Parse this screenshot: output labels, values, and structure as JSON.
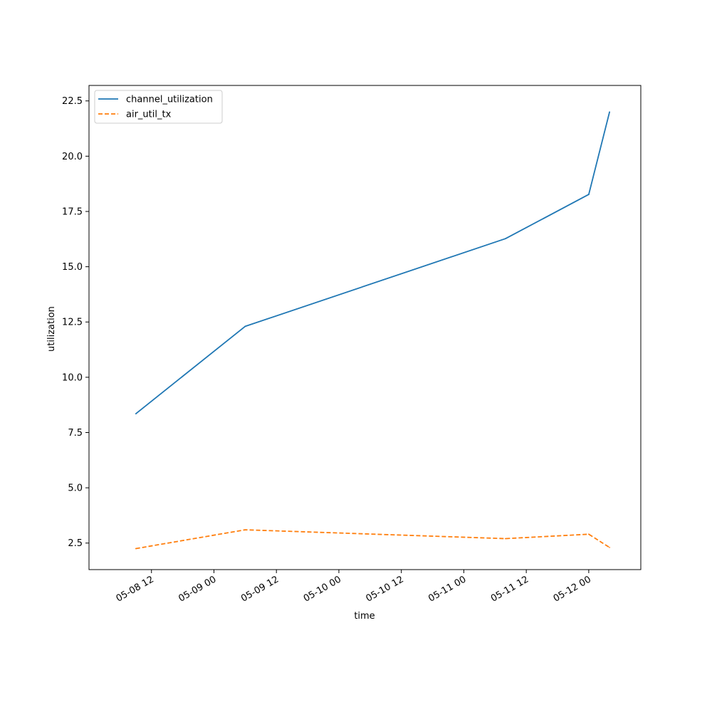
{
  "chart_data": {
    "type": "line",
    "xlabel": "time",
    "ylabel": "utilization",
    "x_axis": "datetime",
    "xlim": [
      "2024-05-08 00:00",
      "2024-05-12 10:00"
    ],
    "ylim": [
      1.3,
      23.2
    ],
    "x_ticks": [
      {
        "value": "2024-05-08 12:00",
        "label": "05-08 12"
      },
      {
        "value": "2024-05-09 00:00",
        "label": "05-09 00"
      },
      {
        "value": "2024-05-09 12:00",
        "label": "05-09 12"
      },
      {
        "value": "2024-05-10 00:00",
        "label": "05-10 00"
      },
      {
        "value": "2024-05-10 12:00",
        "label": "05-10 12"
      },
      {
        "value": "2024-05-11 00:00",
        "label": "05-11 00"
      },
      {
        "value": "2024-05-11 12:00",
        "label": "05-11 12"
      },
      {
        "value": "2024-05-12 00:00",
        "label": "05-12 00"
      }
    ],
    "y_ticks": [
      {
        "value": 2.5,
        "label": "2.5"
      },
      {
        "value": 5.0,
        "label": "5.0"
      },
      {
        "value": 7.5,
        "label": "7.5"
      },
      {
        "value": 10.0,
        "label": "10.0"
      },
      {
        "value": 12.5,
        "label": "12.5"
      },
      {
        "value": 15.0,
        "label": "15.0"
      },
      {
        "value": 17.5,
        "label": "17.5"
      },
      {
        "value": 20.0,
        "label": "20.0"
      },
      {
        "value": 22.5,
        "label": "22.5"
      }
    ],
    "grid": false,
    "legend_position": "top-left",
    "series": [
      {
        "name": "channel_utilization",
        "color": "#1f77b4",
        "line_style": "solid",
        "points": [
          {
            "x": "2024-05-08 09:00",
            "y": 8.35
          },
          {
            "x": "2024-05-09 06:00",
            "y": 12.3
          },
          {
            "x": "2024-05-11 08:00",
            "y": 16.27
          },
          {
            "x": "2024-05-12 00:00",
            "y": 18.27
          },
          {
            "x": "2024-05-12 04:00",
            "y": 22.0
          }
        ]
      },
      {
        "name": "air_util_tx",
        "color": "#ff7f0e",
        "line_style": "dashed",
        "points": [
          {
            "x": "2024-05-08 09:00",
            "y": 2.25
          },
          {
            "x": "2024-05-09 06:00",
            "y": 3.1
          },
          {
            "x": "2024-05-11 08:00",
            "y": 2.7
          },
          {
            "x": "2024-05-12 00:00",
            "y": 2.9
          },
          {
            "x": "2024-05-12 04:00",
            "y": 2.3
          }
        ]
      }
    ]
  }
}
